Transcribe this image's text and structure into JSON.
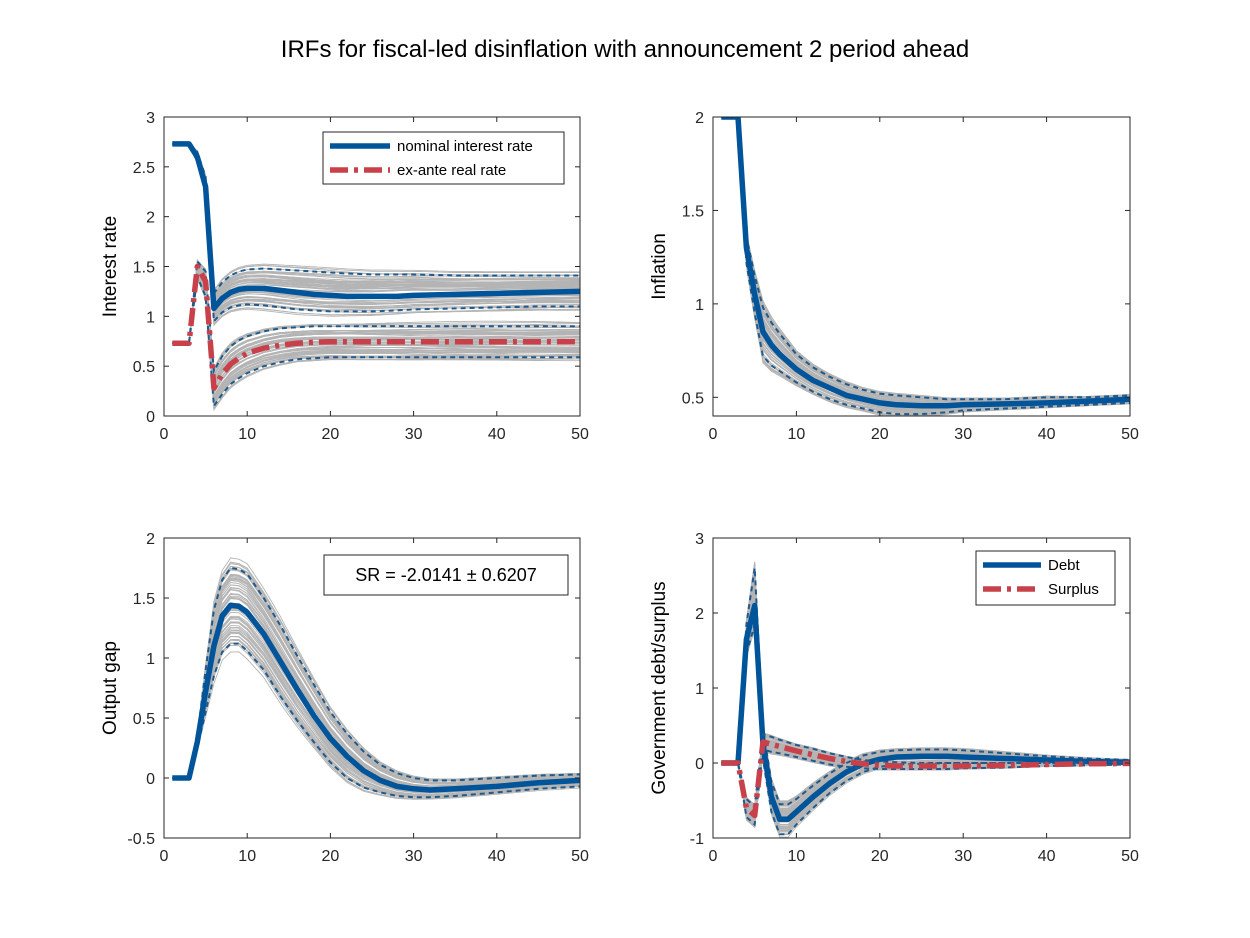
{
  "figure": {
    "title": "IRFs for fiscal-led disinflation with announcement 2 period ahead"
  },
  "colors": {
    "blue": "#00549A",
    "red": "#C8404A",
    "grey": "#B4B4B4",
    "band": "#1E5A8C"
  },
  "chart_data": [
    {
      "type": "line",
      "id": "interest",
      "ylabel": "Interest rate",
      "xlim": [
        0,
        50
      ],
      "ylim": [
        0,
        3
      ],
      "xticks": [
        0,
        10,
        20,
        30,
        40,
        50
      ],
      "yticks": [
        0,
        0.5,
        1,
        1.5,
        2,
        2.5,
        3
      ],
      "legend": {
        "location": "top-right",
        "entries": [
          "nominal interest rate",
          "ex-ante real rate"
        ]
      },
      "series": [
        {
          "name": "nominal interest rate",
          "x": [
            1,
            2,
            3,
            4,
            5,
            6,
            7,
            8,
            9,
            10,
            12,
            14,
            16,
            18,
            20,
            22,
            25,
            28,
            30,
            35,
            40,
            45,
            50
          ],
          "y": [
            2.73,
            2.73,
            2.73,
            2.6,
            2.3,
            1.08,
            1.18,
            1.24,
            1.27,
            1.28,
            1.28,
            1.26,
            1.24,
            1.22,
            1.21,
            1.2,
            1.2,
            1.2,
            1.21,
            1.22,
            1.23,
            1.24,
            1.25
          ],
          "lower": [
            2.73,
            2.73,
            2.73,
            2.55,
            2.25,
            0.95,
            1.04,
            1.09,
            1.11,
            1.12,
            1.11,
            1.09,
            1.07,
            1.06,
            1.05,
            1.05,
            1.05,
            1.06,
            1.07,
            1.08,
            1.09,
            1.1,
            1.1
          ],
          "upper": [
            2.73,
            2.73,
            2.73,
            2.65,
            2.4,
            1.23,
            1.34,
            1.41,
            1.45,
            1.47,
            1.48,
            1.47,
            1.46,
            1.45,
            1.44,
            1.43,
            1.42,
            1.42,
            1.42,
            1.41,
            1.41,
            1.41,
            1.41
          ]
        },
        {
          "name": "ex-ante real rate",
          "x": [
            1,
            2,
            3,
            4,
            5,
            6,
            7,
            8,
            9,
            10,
            12,
            14,
            16,
            18,
            20,
            22,
            25,
            28,
            30,
            35,
            40,
            45,
            50
          ],
          "y": [
            0.73,
            0.73,
            0.73,
            1.5,
            1.35,
            0.28,
            0.42,
            0.52,
            0.58,
            0.63,
            0.68,
            0.71,
            0.73,
            0.74,
            0.745,
            0.745,
            0.745,
            0.745,
            0.745,
            0.745,
            0.745,
            0.745,
            0.745
          ],
          "lower": [
            0.73,
            0.73,
            0.73,
            1.4,
            1.2,
            0.1,
            0.22,
            0.32,
            0.38,
            0.43,
            0.5,
            0.54,
            0.57,
            0.58,
            0.59,
            0.59,
            0.59,
            0.59,
            0.59,
            0.59,
            0.59,
            0.59,
            0.59
          ],
          "upper": [
            0.73,
            0.73,
            0.73,
            1.55,
            1.45,
            0.45,
            0.6,
            0.7,
            0.76,
            0.8,
            0.85,
            0.88,
            0.89,
            0.9,
            0.9,
            0.9,
            0.9,
            0.9,
            0.9,
            0.9,
            0.9,
            0.9,
            0.9
          ]
        }
      ]
    },
    {
      "type": "line",
      "id": "inflation",
      "ylabel": "Inflation",
      "xlim": [
        0,
        50
      ],
      "ylim": [
        0.4,
        2
      ],
      "xticks": [
        0,
        10,
        20,
        30,
        40,
        50
      ],
      "yticks": [
        0.5,
        1,
        1.5,
        2
      ],
      "series": [
        {
          "name": "",
          "x": [
            1,
            2,
            3,
            4,
            5,
            6,
            7,
            8,
            10,
            12,
            14,
            16,
            18,
            20,
            22,
            25,
            28,
            30,
            35,
            40,
            45,
            50
          ],
          "y": [
            2,
            2,
            2,
            1.3,
            1.05,
            0.85,
            0.78,
            0.73,
            0.65,
            0.59,
            0.55,
            0.51,
            0.49,
            0.47,
            0.46,
            0.455,
            0.455,
            0.46,
            0.465,
            0.47,
            0.48,
            0.49
          ],
          "lower": [
            2,
            2,
            2,
            1.22,
            0.95,
            0.72,
            0.67,
            0.64,
            0.58,
            0.53,
            0.49,
            0.46,
            0.44,
            0.42,
            0.41,
            0.41,
            0.42,
            0.43,
            0.44,
            0.45,
            0.46,
            0.47
          ],
          "upper": [
            2,
            2,
            2,
            1.36,
            1.15,
            0.98,
            0.9,
            0.84,
            0.73,
            0.66,
            0.61,
            0.57,
            0.54,
            0.52,
            0.51,
            0.5,
            0.49,
            0.49,
            0.49,
            0.5,
            0.5,
            0.51
          ]
        }
      ]
    },
    {
      "type": "line",
      "id": "output",
      "ylabel": "Output gap",
      "xlim": [
        0,
        50
      ],
      "ylim": [
        -0.5,
        2
      ],
      "xticks": [
        0,
        10,
        20,
        30,
        40,
        50
      ],
      "yticks": [
        -0.5,
        0,
        0.5,
        1,
        1.5,
        2
      ],
      "annotation": "SR = -2.0141 ± 0.6207",
      "series": [
        {
          "name": "",
          "x": [
            1,
            2,
            3,
            4,
            5,
            6,
            7,
            8,
            9,
            10,
            12,
            14,
            16,
            18,
            20,
            22,
            24,
            26,
            28,
            30,
            32,
            35,
            40,
            45,
            50
          ],
          "y": [
            0,
            0,
            0,
            0.3,
            0.72,
            1.1,
            1.35,
            1.44,
            1.43,
            1.38,
            1.2,
            0.97,
            0.74,
            0.52,
            0.33,
            0.18,
            0.06,
            -0.02,
            -0.07,
            -0.09,
            -0.1,
            -0.09,
            -0.07,
            -0.04,
            -0.02
          ],
          "lower": [
            0,
            0,
            0,
            0.25,
            0.55,
            0.85,
            1.05,
            1.12,
            1.12,
            1.06,
            0.9,
            0.68,
            0.48,
            0.3,
            0.13,
            0,
            -0.08,
            -0.12,
            -0.15,
            -0.16,
            -0.16,
            -0.15,
            -0.12,
            -0.09,
            -0.07
          ],
          "upper": [
            0,
            0,
            0,
            0.35,
            0.9,
            1.4,
            1.65,
            1.75,
            1.74,
            1.7,
            1.5,
            1.27,
            1.02,
            0.78,
            0.55,
            0.37,
            0.22,
            0.11,
            0.04,
            0,
            -0.02,
            -0.02,
            0,
            0.02,
            0.03
          ]
        }
      ]
    },
    {
      "type": "line",
      "id": "government",
      "ylabel": "Government debt/surplus",
      "xlim": [
        0,
        50
      ],
      "ylim": [
        -1,
        3
      ],
      "xticks": [
        0,
        10,
        20,
        30,
        40,
        50
      ],
      "yticks": [
        -1,
        0,
        1,
        2,
        3
      ],
      "legend": {
        "location": "top-right",
        "entries": [
          "Debt",
          "Surplus"
        ]
      },
      "series": [
        {
          "name": "Debt",
          "x": [
            1,
            2,
            3,
            4,
            5,
            6,
            7,
            8,
            9,
            10,
            12,
            14,
            16,
            18,
            20,
            22,
            25,
            28,
            30,
            35,
            40,
            45,
            50
          ],
          "y": [
            0,
            0,
            0,
            1.65,
            2.1,
            0.25,
            -0.45,
            -0.75,
            -0.75,
            -0.65,
            -0.45,
            -0.27,
            -0.12,
            -0.01,
            0.05,
            0.08,
            0.09,
            0.09,
            0.08,
            0.06,
            0.04,
            0.02,
            0.01
          ],
          "lower": [
            0,
            0,
            0,
            1.45,
            1.85,
            0.05,
            -0.65,
            -0.95,
            -0.95,
            -0.82,
            -0.6,
            -0.4,
            -0.24,
            -0.12,
            -0.05,
            -0.02,
            -0.01,
            0,
            0,
            0,
            0,
            -0.01,
            -0.01
          ],
          "upper": [
            0,
            0,
            0,
            1.85,
            2.6,
            0.45,
            -0.25,
            -0.55,
            -0.55,
            -0.48,
            -0.3,
            -0.14,
            0,
            0.1,
            0.15,
            0.17,
            0.18,
            0.18,
            0.17,
            0.13,
            0.09,
            0.06,
            0.04
          ]
        },
        {
          "name": "Surplus",
          "x": [
            1,
            2,
            3,
            4,
            5,
            6,
            7,
            8,
            10,
            12,
            14,
            16,
            18,
            20,
            22,
            25,
            28,
            30,
            35,
            40,
            45,
            50
          ],
          "y": [
            0,
            0,
            0,
            -0.6,
            -0.7,
            0.28,
            0.25,
            0.22,
            0.16,
            0.11,
            0.06,
            0.02,
            -0.01,
            -0.03,
            -0.04,
            -0.04,
            -0.04,
            -0.04,
            -0.03,
            -0.02,
            -0.01,
            -0.005
          ],
          "lower": [
            0,
            0,
            0,
            -0.72,
            -0.82,
            0.18,
            0.15,
            0.13,
            0.08,
            0.03,
            -0.02,
            -0.05,
            -0.07,
            -0.08,
            -0.08,
            -0.08,
            -0.08,
            -0.07,
            -0.06,
            -0.04,
            -0.03,
            -0.02
          ],
          "upper": [
            0,
            0,
            0,
            -0.48,
            -0.58,
            0.38,
            0.35,
            0.31,
            0.24,
            0.19,
            0.13,
            0.08,
            0.04,
            0.02,
            0.01,
            0,
            0,
            0,
            0,
            0,
            0.01,
            0.01
          ]
        }
      ]
    }
  ]
}
